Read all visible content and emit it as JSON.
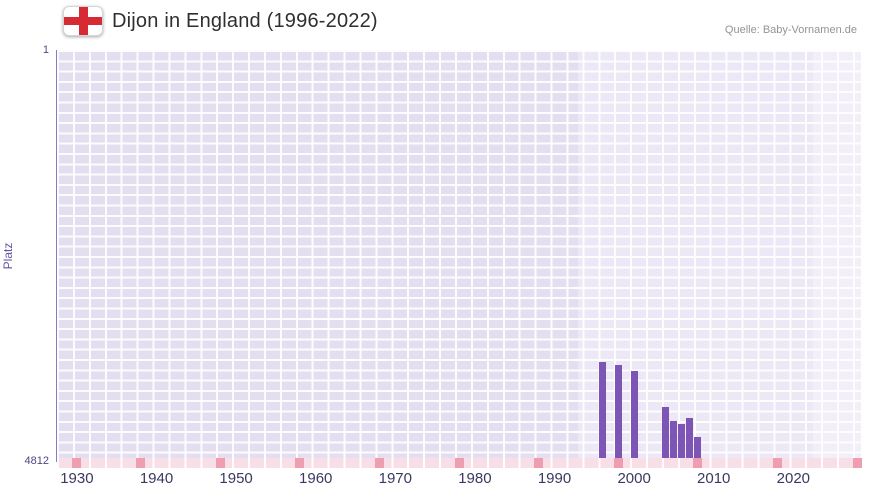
{
  "header": {
    "title": "Dijon in England (1996-2022)",
    "source": "Quelle: Baby-Vornamen.de",
    "flag_icon": "england-st-george-cross-flag"
  },
  "chart_data": {
    "type": "bar",
    "title": "Dijon in England (1996-2022)",
    "subtitle": "",
    "xlabel": "",
    "ylabel": "Platz",
    "legend": false,
    "grid": true,
    "y_axis": {
      "top_label": "1",
      "bottom_label": "4812",
      "min": 1,
      "max": 4812,
      "inverted": true
    },
    "x_axis": {
      "ticks": [
        "1930",
        "1940",
        "1950",
        "1960",
        "1970",
        "1980",
        "1990",
        "2000",
        "2010",
        "2020"
      ],
      "range": [
        1927.5,
        2028.5
      ]
    },
    "series": [
      {
        "name": "Platz",
        "data": [
          {
            "year": 1996,
            "rank": 3650
          },
          {
            "year": 1998,
            "rank": 3680
          },
          {
            "year": 2000,
            "rank": 3750
          },
          {
            "year": 2004,
            "rank": 4170
          },
          {
            "year": 2005,
            "rank": 4330
          },
          {
            "year": 2006,
            "rank": 4370
          },
          {
            "year": 2007,
            "rank": 4300
          },
          {
            "year": 2008,
            "rank": 4520
          }
        ]
      }
    ],
    "plot_bands": [
      {
        "from": 1993,
        "to": 2022.5,
        "label": "data-period"
      },
      {
        "from": 2022.5,
        "to": 2028.5,
        "label": "post-data"
      }
    ],
    "baseline_marker_years": [
      1930,
      1938,
      1948,
      1958,
      1968,
      1978,
      1988,
      1998,
      2008,
      2018,
      2028
    ],
    "colors": {
      "bar": "#7d55b4",
      "plot_background": "#e3def0",
      "band_data_period": "#ece8f6",
      "band_post": "#f2eff9",
      "baseline_strip": "#f8dfe7",
      "baseline_marker": "#ef9db1",
      "flag_red": "#d62b33",
      "axis_line": "#8a7ac2"
    }
  }
}
